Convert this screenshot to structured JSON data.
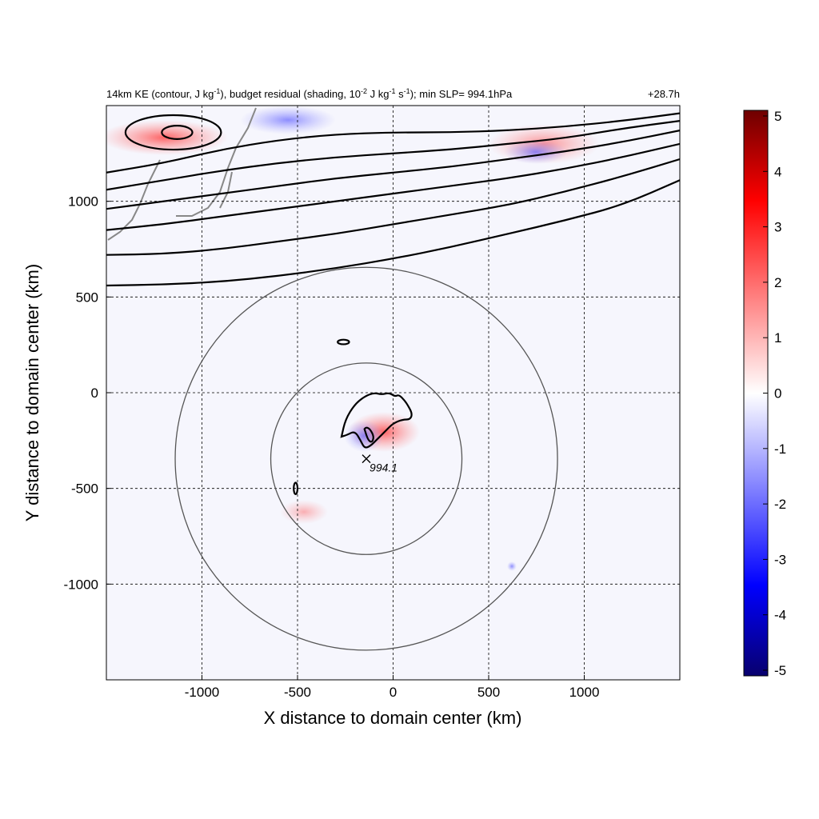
{
  "chart_data": {
    "type": "heatmap",
    "title": {
      "main": "14km KE (contour, J kg",
      "sup1": "-1",
      "mid1": "), budget residual (shading, 10",
      "sup2": "-2",
      "mid2": " J kg",
      "sup3": "-1",
      "mid3": " s",
      "sup4": "-1",
      "tail": "); min SLP= 994.1hPa"
    },
    "time_label": "+28.7h",
    "xlabel": "X distance to domain center (km)",
    "ylabel": "Y distance to domain center (km)",
    "xlim": [
      -1500,
      1500
    ],
    "ylim": [
      -1500,
      1500
    ],
    "x_ticks": [
      -1000,
      -500,
      0,
      500,
      1000
    ],
    "y_ticks": [
      -1000,
      -500,
      0,
      500,
      1000
    ],
    "x_tick_labels": [
      "-1000",
      "-500",
      "0",
      "500",
      "1000"
    ],
    "y_tick_labels": [
      "-1000",
      "-500",
      "0",
      "500",
      "1000"
    ],
    "grid": true,
    "colorbar": {
      "min": -5,
      "max": 5,
      "ticks": [
        5,
        4,
        3,
        2,
        1,
        0,
        -1,
        -2,
        -3,
        -4,
        -5
      ],
      "tick_labels": [
        "5",
        "4",
        "3",
        "2",
        "1",
        "0",
        "-1",
        "-2",
        "-3",
        "-4",
        "-5"
      ],
      "colors": [
        "#08006e",
        "#0000ff",
        "#8080ff",
        "#ffffff",
        "#ff8080",
        "#ff0000",
        "#6e0000"
      ]
    },
    "storm_center": {
      "x": -140,
      "y": -345,
      "label": "994.1"
    },
    "range_rings_km": [
      500,
      1000
    ],
    "ke_contours_upper": [
      {
        "x": [
          -1500,
          -1200,
          -900,
          -600,
          -300,
          0,
          300,
          600,
          900,
          1200,
          1500
        ],
        "y": [
          560,
          565,
          580,
          610,
          650,
          700,
          760,
          830,
          900,
          980,
          1110
        ]
      },
      {
        "x": [
          -1500,
          -1200,
          -900,
          -600,
          -300,
          0,
          300,
          600,
          900,
          1200,
          1500
        ],
        "y": [
          720,
          725,
          750,
          790,
          830,
          880,
          930,
          980,
          1050,
          1130,
          1220
        ]
      },
      {
        "x": [
          -1500,
          -1200,
          -900,
          -600,
          -300,
          0,
          300,
          600,
          900,
          1200,
          1500
        ],
        "y": [
          850,
          880,
          920,
          960,
          1000,
          1040,
          1080,
          1120,
          1170,
          1230,
          1300
        ]
      },
      {
        "x": [
          -1500,
          -1200,
          -900,
          -600,
          -300,
          0,
          300,
          600,
          900,
          1200,
          1500
        ],
        "y": [
          960,
          1000,
          1040,
          1080,
          1120,
          1150,
          1180,
          1220,
          1260,
          1310,
          1370
        ]
      },
      {
        "x": [
          -1500,
          -1200,
          -900,
          -600,
          -300,
          0,
          300,
          600,
          900,
          1200,
          1500
        ],
        "y": [
          1060,
          1110,
          1160,
          1200,
          1230,
          1250,
          1270,
          1300,
          1330,
          1380,
          1420
        ]
      },
      {
        "x": [
          -1500,
          -1200,
          -900,
          -600,
          -300,
          0,
          300,
          600,
          900,
          1200,
          1500
        ],
        "y": [
          1150,
          1200,
          1270,
          1320,
          1350,
          1360,
          1360,
          1370,
          1390,
          1420,
          1460
        ]
      }
    ],
    "ke_contours_closed": [
      {
        "cx": -1150,
        "cy": 1360,
        "rx": 250,
        "ry": 90
      },
      {
        "cx": -1130,
        "cy": 1360,
        "rx": 80,
        "ry": 35
      },
      {
        "cx": -260,
        "cy": 265,
        "rx": 30,
        "ry": 12
      },
      {
        "cx": -510,
        "cy": -500,
        "rx": 10,
        "ry": 30
      }
    ],
    "ke_contour_storm": {
      "x": [
        -270,
        -250,
        -200,
        -150,
        -100,
        -60,
        -20,
        10,
        30,
        60,
        80,
        100,
        90,
        50,
        0,
        -40,
        -80,
        -120,
        -150,
        -170,
        -200,
        -240,
        -270
      ],
      "y": [
        -230,
        -140,
        -60,
        -20,
        0,
        -10,
        0,
        -20,
        -10,
        -40,
        -70,
        -110,
        -140,
        -140,
        -160,
        -200,
        -240,
        -280,
        -290,
        -250,
        -200,
        -220,
        -230
      ]
    },
    "ke_contour_storm_inner": {
      "x": [
        -150,
        -140,
        -120,
        -100,
        -110,
        -130,
        -150
      ],
      "y": [
        -190,
        -180,
        -190,
        -230,
        -260,
        -250,
        -190
      ]
    }
  }
}
